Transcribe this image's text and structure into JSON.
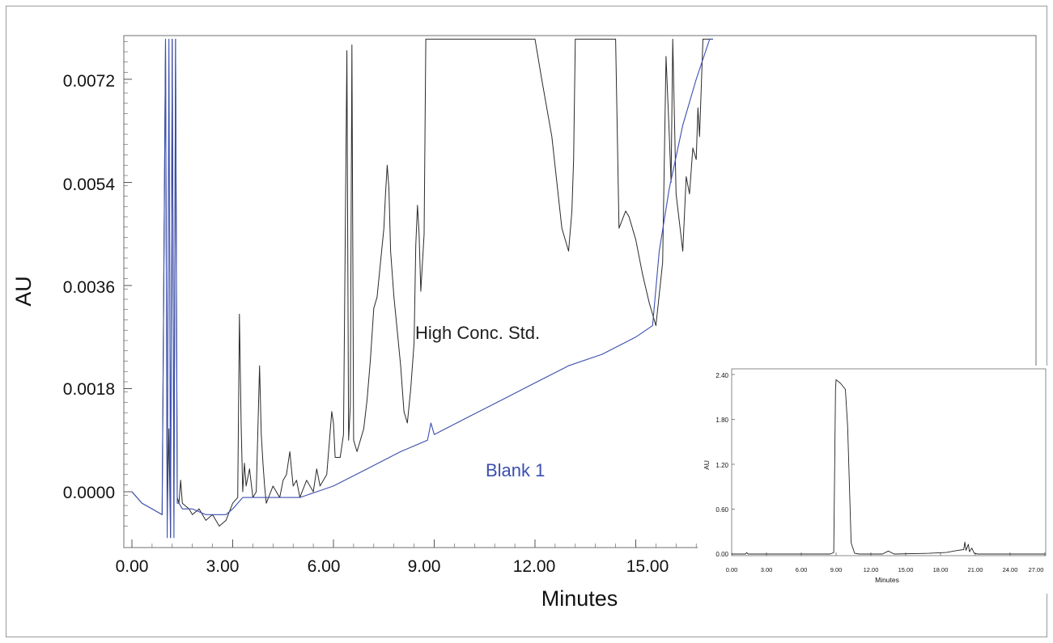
{
  "chart_data": [
    {
      "type": "line",
      "title": "",
      "xlabel": "Minutes",
      "ylabel": "AU",
      "xlim": [
        0,
        17.3
      ],
      "ylim": [
        -0.0008,
        0.0079
      ],
      "x_ticks": [
        0,
        3,
        6,
        9,
        12,
        15
      ],
      "x_tick_labels": [
        "0.00",
        "3.00",
        "6.00",
        "9.00",
        "12.00",
        "15.00"
      ],
      "y_ticks": [
        0,
        0.0018,
        0.0036,
        0.0054,
        0.0072
      ],
      "y_tick_labels": [
        "0.0000",
        "0.0018",
        "0.0036",
        "0.0054",
        "0.0072"
      ],
      "grid": false,
      "colors": {
        "high": "#2a2a2a",
        "blank": "#3b4fb0"
      },
      "annotations": [
        "High Conc. Std.",
        "Blank 1"
      ],
      "series": [
        {
          "name": "High Conc. Std.",
          "x": [
            0,
            0.3,
            0.6,
            0.9,
            1.0,
            1.05,
            1.1,
            1.15,
            1.2,
            1.25,
            1.3,
            1.35,
            1.4,
            1.45,
            1.5,
            1.7,
            1.8,
            2.0,
            2.2,
            2.4,
            2.6,
            2.8,
            3.0,
            3.15,
            3.2,
            3.25,
            3.3,
            3.35,
            3.4,
            3.5,
            3.6,
            3.7,
            3.8,
            3.85,
            3.9,
            3.95,
            4.0,
            4.2,
            4.3,
            4.4,
            4.5,
            4.6,
            4.7,
            4.75,
            4.8,
            4.9,
            5.0,
            5.2,
            5.4,
            5.5,
            5.6,
            5.8,
            5.95,
            6.0,
            6.05,
            6.2,
            6.3,
            6.4,
            6.45,
            6.5,
            6.55,
            6.6,
            6.7,
            6.8,
            6.9,
            7.0,
            7.1,
            7.2,
            7.3,
            7.4,
            7.5,
            7.55,
            7.6,
            7.65,
            7.7,
            7.8,
            7.9,
            8.0,
            8.1,
            8.2,
            8.3,
            8.4,
            8.45,
            8.5,
            8.55,
            8.6,
            8.7,
            8.75,
            8.8,
            12.0,
            12.2,
            12.5,
            12.8,
            13.0,
            13.1,
            13.15,
            13.2,
            14.4,
            14.5,
            14.7,
            14.8,
            15.0,
            15.2,
            15.4,
            15.6,
            15.8,
            15.9,
            16.0,
            16.05,
            16.1,
            16.2,
            16.4,
            16.5,
            16.6,
            16.7,
            16.8,
            16.85,
            16.9,
            17.0,
            17.2,
            17.3
          ],
          "y": [
            0.0,
            -0.0002,
            -0.0003,
            -0.0004,
            0.0079,
            -0.0005,
            0.0011,
            -0.0008,
            0.0079,
            -0.0004,
            0.0079,
            -0.0001,
            -0.0002,
            0.0002,
            -0.0002,
            -0.0003,
            -0.0004,
            -0.0003,
            -0.0005,
            -0.0004,
            -0.0006,
            -0.0005,
            -0.0002,
            -0.0001,
            0.0031,
            0.0012,
            0.0,
            0.0005,
            0.0001,
            0.0004,
            -0.0001,
            0.0,
            0.0022,
            0.001,
            0.0005,
            0.0001,
            -0.0002,
            0.0001,
            0.0,
            -0.0001,
            0.0002,
            0.0003,
            0.0007,
            0.0004,
            0.0001,
            0.0002,
            -0.0001,
            0.0002,
            0.0,
            0.0004,
            0.0001,
            0.0003,
            0.0014,
            0.0012,
            0.0006,
            0.0006,
            0.001,
            0.0077,
            0.0009,
            0.0015,
            0.0078,
            0.0009,
            0.0007,
            0.0009,
            0.0011,
            0.0016,
            0.0023,
            0.0032,
            0.0034,
            0.004,
            0.0046,
            0.0052,
            0.0057,
            0.0053,
            0.0042,
            0.0034,
            0.0028,
            0.0022,
            0.0014,
            0.0012,
            0.0018,
            0.0026,
            0.0043,
            0.005,
            0.0045,
            0.0035,
            0.0045,
            0.0079,
            0.0079,
            0.0079,
            0.0072,
            0.0062,
            0.0046,
            0.0042,
            0.0049,
            0.0058,
            0.0079,
            0.0079,
            0.0046,
            0.0049,
            0.0048,
            0.0044,
            0.0038,
            0.0033,
            0.0029,
            0.004,
            0.0076,
            0.0062,
            0.0054,
            0.0079,
            0.0052,
            0.0042,
            0.0055,
            0.0052,
            0.006,
            0.0058,
            0.0067,
            0.0062,
            0.0079,
            0.0079,
            0.0079
          ]
        },
        {
          "name": "Blank 1",
          "x": [
            0,
            0.3,
            0.6,
            0.9,
            1.0,
            1.05,
            1.1,
            1.15,
            1.2,
            1.25,
            1.3,
            1.35,
            1.4,
            1.5,
            1.8,
            2.2,
            2.6,
            2.8,
            3.0,
            3.3,
            3.5,
            4.0,
            4.5,
            5.0,
            5.5,
            6.0,
            7.0,
            8.0,
            8.8,
            8.9,
            9.0,
            10.0,
            11.0,
            12.0,
            13.0,
            14.0,
            15.0,
            15.5,
            15.7,
            16.0,
            16.4,
            16.8,
            17.2,
            17.3
          ],
          "y": [
            0.0,
            -0.0002,
            -0.0003,
            -0.0004,
            0.0079,
            -0.0008,
            0.0079,
            -0.0008,
            0.0079,
            -0.0008,
            0.0079,
            -0.0002,
            -0.0002,
            -0.0003,
            -0.0003,
            -0.0004,
            -0.0004,
            -0.0004,
            -0.0003,
            -0.0001,
            -0.0001,
            -0.0001,
            -0.0001,
            -0.0001,
            0.0,
            0.0001,
            0.0004,
            0.0007,
            0.0009,
            0.0012,
            0.001,
            0.0013,
            0.0016,
            0.0019,
            0.0022,
            0.0024,
            0.0027,
            0.0029,
            0.0042,
            0.0053,
            0.0064,
            0.0072,
            0.0079,
            0.0079
          ]
        }
      ]
    },
    {
      "type": "line",
      "title": "",
      "xlabel": "Minutes",
      "ylabel": "AU",
      "xlim": [
        0,
        27
      ],
      "ylim": [
        -0.1,
        2.45
      ],
      "x_ticks": [
        0,
        3,
        6,
        9,
        12,
        15,
        18,
        21,
        24,
        27
      ],
      "x_tick_labels": [
        "0.00",
        "3.00",
        "6.00",
        "9.00",
        "12.00",
        "15.00",
        "18.00",
        "21.00",
        "24.00",
        "27.00"
      ],
      "y_ticks": [
        0,
        0.6,
        1.2,
        1.8,
        2.4
      ],
      "y_tick_labels": [
        "0.00",
        "0.60",
        "1.20",
        "1.80",
        "2.40"
      ],
      "grid": false,
      "series": [
        {
          "x": [
            0,
            1.2,
            1.3,
            1.4,
            8.5,
            8.8,
            8.95,
            9.0,
            9.4,
            9.8,
            10.0,
            10.3,
            10.6,
            11.0,
            13.0,
            13.5,
            14.0,
            17.0,
            18.5,
            19.5,
            20.0,
            20.1,
            20.2,
            20.4,
            20.5,
            20.7,
            20.9,
            21.2,
            27.0
          ],
          "y": [
            0.0,
            0.0,
            0.02,
            0.0,
            0.0,
            0.02,
            2.2,
            2.33,
            2.28,
            2.2,
            1.7,
            0.15,
            0.01,
            0.0,
            0.0,
            0.04,
            0.0,
            0.01,
            0.02,
            0.05,
            0.06,
            0.16,
            0.05,
            0.13,
            0.03,
            0.08,
            0.01,
            0.0,
            0.0
          ]
        }
      ]
    }
  ]
}
